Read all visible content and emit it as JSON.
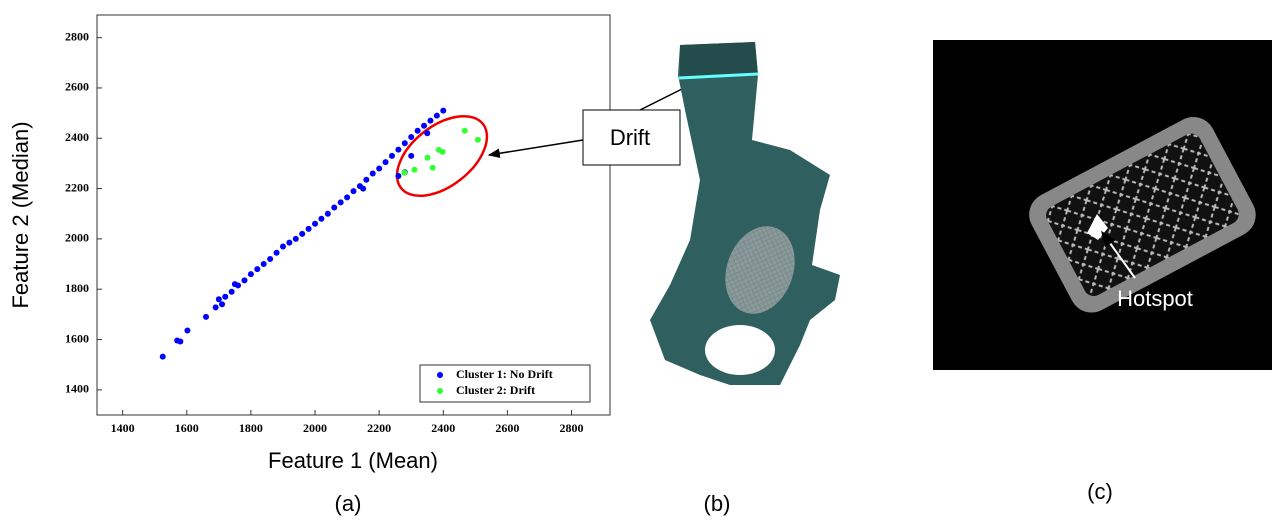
{
  "chart_data": {
    "type": "scatter",
    "x_label": "Feature 1 (Mean)",
    "y_label": "Feature 2 (Median)",
    "xlim": [
      1320,
      2920
    ],
    "ylim": [
      1300,
      2890
    ],
    "xticks": [
      1400,
      1600,
      1800,
      2000,
      2200,
      2400,
      2600,
      2800
    ],
    "yticks": [
      1400,
      1600,
      1800,
      2000,
      2200,
      2400,
      2600,
      2800
    ],
    "legend": "lower right",
    "series": [
      {
        "name": "Cluster 1: No Drift",
        "color": "#0000ff",
        "x": [
          1525,
          1570,
          1580,
          1602,
          1660,
          1690,
          1700,
          1720,
          1740,
          1760,
          1780,
          1800,
          1820,
          1840,
          1860,
          1880,
          1900,
          1920,
          1940,
          1960,
          1980,
          2000,
          2020,
          2040,
          2060,
          2080,
          2100,
          2120,
          2140,
          2160,
          2180,
          2200,
          2220,
          2240,
          2260,
          2280,
          2300,
          2320,
          2340,
          2360,
          2380,
          2400,
          2260,
          2280,
          2300,
          2350,
          1710,
          1750,
          2150
        ],
        "y": [
          1532,
          1596,
          1592,
          1636,
          1690,
          1728,
          1760,
          1770,
          1790,
          1815,
          1835,
          1860,
          1880,
          1900,
          1920,
          1945,
          1970,
          1985,
          2000,
          2020,
          2040,
          2060,
          2080,
          2100,
          2125,
          2145,
          2165,
          2190,
          2210,
          2235,
          2260,
          2280,
          2305,
          2330,
          2355,
          2380,
          2405,
          2430,
          2450,
          2470,
          2490,
          2510,
          2250,
          2265,
          2330,
          2420,
          1740,
          1820,
          2200
        ]
      },
      {
        "name": "Cluster 2: Drift",
        "color": "#33ff33",
        "x": [
          2279,
          2310,
          2351,
          2367,
          2386,
          2398,
          2467,
          2508
        ],
        "y": [
          2263,
          2275,
          2323,
          2283,
          2354,
          2346,
          2430,
          2394
        ]
      }
    ]
  },
  "panels": {
    "labels": [
      "(a)",
      "(b)",
      "(c)"
    ],
    "drift": "Drift",
    "hotspot": "Hotspot"
  }
}
